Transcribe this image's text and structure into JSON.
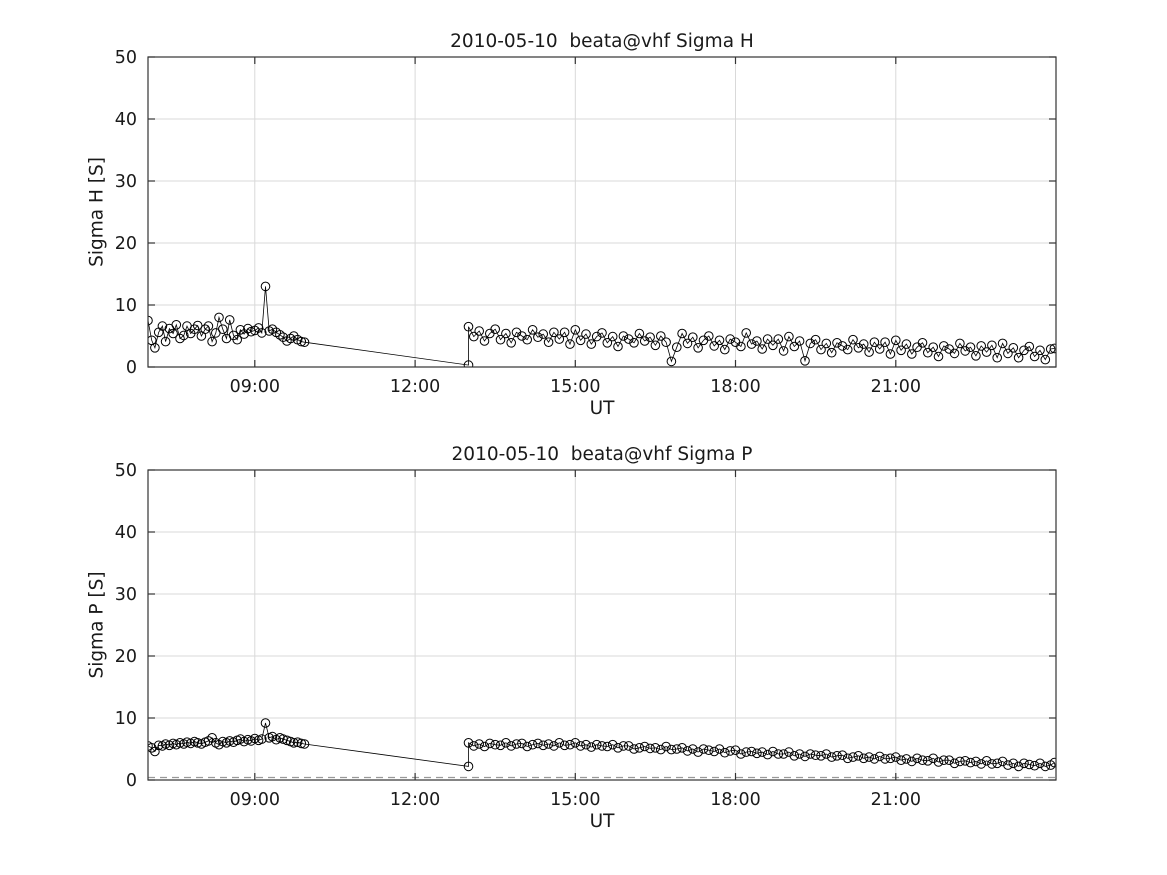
{
  "colors": {
    "grid": "#d9d9d9",
    "axis": "#333333",
    "text": "#1a1a1a",
    "series": "#000000"
  },
  "chart_data": [
    {
      "id": "sigma-h",
      "type": "line",
      "title": "2010-05-10  beata@vhf Sigma H",
      "xlabel": "UT",
      "ylabel": "Sigma H [S]",
      "xlim": [
        7,
        24
      ],
      "ylim": [
        0,
        50
      ],
      "xticks": [
        9,
        12,
        15,
        18,
        21
      ],
      "xtick_labels": [
        "09:00",
        "12:00",
        "15:00",
        "18:00",
        "21:00"
      ],
      "yticks": [
        0,
        10,
        20,
        30,
        40,
        50
      ],
      "grid": true,
      "marker": "circle",
      "color": "#000000",
      "legend": null,
      "series": [
        {
          "name": "sigma-h",
          "x": [
            7.0,
            7.07,
            7.13,
            7.2,
            7.27,
            7.33,
            7.4,
            7.47,
            7.53,
            7.6,
            7.67,
            7.73,
            7.8,
            7.87,
            7.93,
            8.0,
            8.07,
            8.13,
            8.2,
            8.27,
            8.33,
            8.4,
            8.47,
            8.53,
            8.6,
            8.67,
            8.73,
            8.8,
            8.87,
            8.93,
            9.0,
            9.07,
            9.13,
            9.2,
            9.27,
            9.33,
            9.4,
            9.47,
            9.53,
            9.6,
            9.67,
            9.73,
            9.8,
            9.87,
            9.93,
            13.0,
            13.0,
            13.1,
            13.2,
            13.3,
            13.4,
            13.5,
            13.6,
            13.7,
            13.8,
            13.9,
            14.0,
            14.1,
            14.2,
            14.3,
            14.4,
            14.5,
            14.6,
            14.7,
            14.8,
            14.9,
            15.0,
            15.1,
            15.2,
            15.3,
            15.4,
            15.5,
            15.6,
            15.7,
            15.8,
            15.9,
            16.0,
            16.1,
            16.2,
            16.3,
            16.4,
            16.5,
            16.6,
            16.7,
            16.8,
            16.9,
            17.0,
            17.1,
            17.2,
            17.3,
            17.4,
            17.5,
            17.6,
            17.7,
            17.8,
            17.9,
            18.0,
            18.1,
            18.2,
            18.3,
            18.4,
            18.5,
            18.6,
            18.7,
            18.8,
            18.9,
            19.0,
            19.1,
            19.2,
            19.3,
            19.4,
            19.5,
            19.6,
            19.7,
            19.8,
            19.9,
            20.0,
            20.1,
            20.2,
            20.3,
            20.4,
            20.5,
            20.6,
            20.7,
            20.8,
            20.9,
            21.0,
            21.1,
            21.2,
            21.3,
            21.4,
            21.5,
            21.6,
            21.7,
            21.8,
            21.9,
            22.0,
            22.1,
            22.2,
            22.3,
            22.4,
            22.5,
            22.6,
            22.7,
            22.8,
            22.9,
            23.0,
            23.1,
            23.2,
            23.3,
            23.4,
            23.5,
            23.6,
            23.7,
            23.8,
            23.9,
            23.97
          ],
          "y": [
            7.5,
            4.3,
            3.1,
            5.6,
            6.6,
            4.1,
            6.2,
            5.4,
            6.8,
            4.6,
            5.1,
            6.6,
            5.4,
            6.1,
            6.7,
            5.0,
            6.1,
            6.6,
            4.1,
            5.5,
            8.0,
            6.1,
            4.6,
            7.6,
            5.1,
            4.4,
            6.0,
            5.3,
            6.2,
            5.7,
            5.9,
            6.3,
            5.5,
            13.0,
            5.8,
            6.1,
            5.6,
            5.2,
            4.8,
            4.2,
            4.6,
            5.0,
            4.4,
            4.1,
            4.0,
            0.3,
            6.5,
            4.9,
            5.8,
            4.2,
            5.4,
            6.1,
            4.4,
            5.4,
            3.9,
            5.6,
            5.0,
            4.4,
            6.0,
            4.8,
            5.3,
            4.0,
            5.6,
            4.5,
            5.6,
            3.7,
            6.0,
            4.3,
            5.3,
            3.7,
            4.9,
            5.5,
            3.9,
            4.9,
            3.3,
            5.0,
            4.5,
            3.9,
            5.4,
            4.2,
            4.8,
            3.5,
            5.0,
            4.0,
            0.9,
            3.2,
            5.4,
            3.8,
            4.8,
            3.1,
            4.3,
            5.0,
            3.4,
            4.3,
            2.8,
            4.5,
            4.0,
            3.3,
            5.5,
            3.7,
            4.2,
            2.9,
            4.5,
            3.5,
            4.5,
            2.6,
            4.9,
            3.3,
            4.2,
            1.0,
            3.8,
            4.4,
            2.8,
            3.8,
            2.3,
            3.9,
            3.4,
            2.8,
            4.4,
            3.1,
            3.7,
            2.4,
            4.0,
            2.9,
            4.0,
            2.1,
            4.3,
            2.7,
            3.7,
            2.1,
            3.2,
            3.9,
            2.3,
            3.2,
            1.7,
            3.4,
            2.9,
            2.2,
            3.8,
            2.6,
            3.2,
            1.8,
            3.4,
            2.4,
            3.5,
            1.5,
            3.8,
            2.2,
            3.1,
            1.5,
            2.7,
            3.3,
            1.7,
            2.7,
            1.2,
            2.9,
            3.0
          ]
        }
      ]
    },
    {
      "id": "sigma-p",
      "type": "line",
      "title": "2010-05-10  beata@vhf Sigma P",
      "xlabel": "UT",
      "ylabel": "Sigma P [S]",
      "xlim": [
        7,
        24
      ],
      "ylim": [
        0,
        50
      ],
      "xticks": [
        9,
        12,
        15,
        18,
        21
      ],
      "xtick_labels": [
        "09:00",
        "12:00",
        "15:00",
        "18:00",
        "21:00"
      ],
      "yticks": [
        0,
        10,
        20,
        30,
        40,
        50
      ],
      "grid": true,
      "marker": "circle",
      "color": "#000000",
      "legend": null,
      "baseline": {
        "y": 0.4,
        "color": "#999999"
      },
      "series": [
        {
          "name": "sigma-p",
          "x": [
            7.0,
            7.07,
            7.13,
            7.2,
            7.27,
            7.33,
            7.4,
            7.47,
            7.53,
            7.6,
            7.67,
            7.73,
            7.8,
            7.87,
            7.93,
            8.0,
            8.07,
            8.13,
            8.2,
            8.27,
            8.33,
            8.4,
            8.47,
            8.53,
            8.6,
            8.67,
            8.73,
            8.8,
            8.87,
            8.93,
            9.0,
            9.07,
            9.13,
            9.2,
            9.27,
            9.33,
            9.4,
            9.47,
            9.53,
            9.6,
            9.67,
            9.73,
            9.8,
            9.87,
            9.93,
            13.0,
            13.0,
            13.1,
            13.2,
            13.3,
            13.4,
            13.5,
            13.6,
            13.7,
            13.8,
            13.9,
            14.0,
            14.1,
            14.2,
            14.3,
            14.4,
            14.5,
            14.6,
            14.7,
            14.8,
            14.9,
            15.0,
            15.1,
            15.2,
            15.3,
            15.4,
            15.5,
            15.6,
            15.7,
            15.8,
            15.9,
            16.0,
            16.1,
            16.2,
            16.3,
            16.4,
            16.5,
            16.6,
            16.7,
            16.8,
            16.9,
            17.0,
            17.1,
            17.2,
            17.3,
            17.4,
            17.5,
            17.6,
            17.7,
            17.8,
            17.9,
            18.0,
            18.1,
            18.2,
            18.3,
            18.4,
            18.5,
            18.6,
            18.7,
            18.8,
            18.9,
            19.0,
            19.1,
            19.2,
            19.3,
            19.4,
            19.5,
            19.6,
            19.7,
            19.8,
            19.9,
            20.0,
            20.1,
            20.2,
            20.3,
            20.4,
            20.5,
            20.6,
            20.7,
            20.8,
            20.9,
            21.0,
            21.1,
            21.2,
            21.3,
            21.4,
            21.5,
            21.6,
            21.7,
            21.8,
            21.9,
            22.0,
            22.1,
            22.2,
            22.3,
            22.4,
            22.5,
            22.6,
            22.7,
            22.8,
            22.9,
            23.0,
            23.1,
            23.2,
            23.3,
            23.4,
            23.5,
            23.6,
            23.7,
            23.8,
            23.9,
            23.97
          ],
          "y": [
            5.5,
            5.2,
            4.6,
            5.6,
            5.5,
            5.8,
            5.6,
            5.9,
            5.7,
            6.0,
            5.8,
            6.1,
            5.9,
            6.2,
            6.0,
            5.8,
            6.1,
            6.3,
            6.8,
            6.0,
            5.7,
            6.2,
            6.0,
            6.3,
            6.1,
            6.4,
            6.6,
            6.2,
            6.5,
            6.3,
            6.7,
            6.4,
            6.6,
            9.2,
            6.8,
            7.0,
            6.5,
            6.8,
            6.6,
            6.4,
            6.2,
            6.0,
            6.1,
            5.9,
            5.8,
            2.2,
            6.0,
            5.5,
            5.8,
            5.4,
            5.9,
            5.7,
            5.6,
            6.0,
            5.5,
            5.8,
            5.9,
            5.4,
            5.7,
            5.9,
            5.6,
            5.8,
            5.5,
            6.0,
            5.6,
            5.7,
            6.0,
            5.5,
            5.7,
            5.3,
            5.7,
            5.5,
            5.4,
            5.7,
            5.2,
            5.5,
            5.5,
            5.0,
            5.2,
            5.4,
            5.1,
            5.2,
            4.9,
            5.4,
            4.9,
            5.0,
            5.2,
            4.7,
            5.0,
            4.5,
            5.0,
            4.8,
            4.6,
            5.0,
            4.4,
            4.7,
            4.8,
            4.2,
            4.5,
            4.6,
            4.3,
            4.5,
            4.1,
            4.6,
            4.2,
            4.2,
            4.5,
            3.9,
            4.2,
            3.8,
            4.2,
            4.0,
            3.9,
            4.2,
            3.7,
            3.9,
            4.0,
            3.5,
            3.7,
            3.9,
            3.5,
            3.7,
            3.4,
            3.8,
            3.4,
            3.5,
            3.7,
            3.2,
            3.4,
            3.0,
            3.5,
            3.2,
            3.1,
            3.5,
            2.9,
            3.2,
            3.2,
            2.7,
            3.0,
            3.1,
            2.8,
            3.0,
            2.6,
            3.1,
            2.6,
            2.7,
            3.0,
            2.4,
            2.7,
            2.2,
            2.7,
            2.5,
            2.3,
            2.7,
            2.2,
            2.4,
            2.8
          ]
        }
      ]
    }
  ]
}
